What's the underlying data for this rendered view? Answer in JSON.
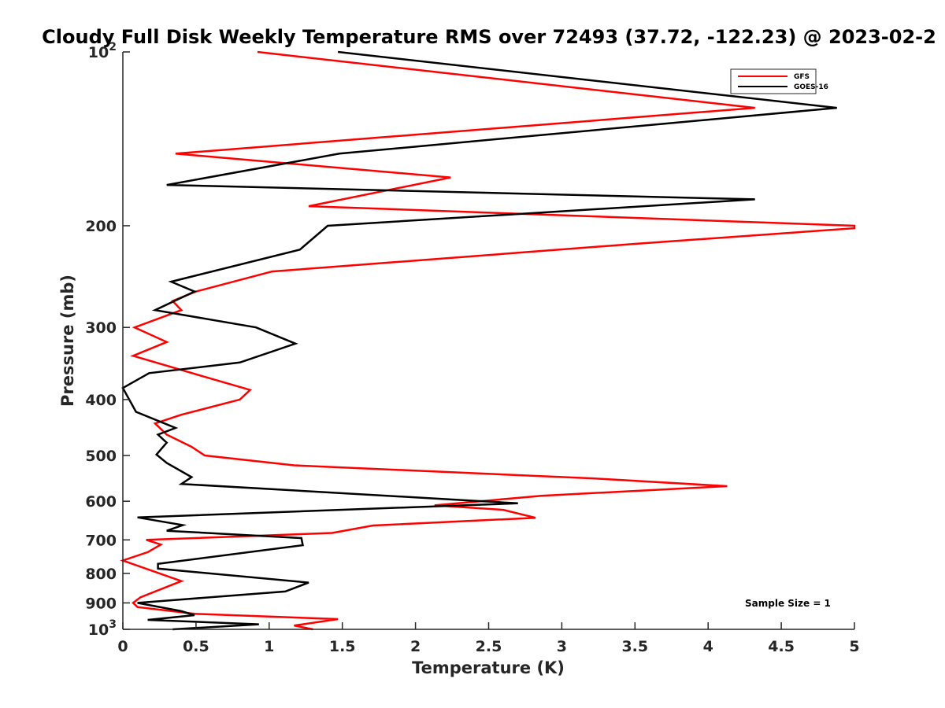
{
  "chart_data": {
    "type": "line",
    "title": "Cloudy Full Disk Weekly Temperature RMS over 72493 (37.72, -122.23) @ 2023-02-2",
    "xlabel": "Temperature (K)",
    "ylabel": "Pressure (mb)",
    "xlim": [
      0,
      5
    ],
    "ylim": [
      100,
      1000
    ],
    "y_scale": "log",
    "y_reversed": true,
    "grid": false,
    "legend_position": "top-right",
    "x_ticks": [
      "0",
      "0.5",
      "1",
      "1.5",
      "2",
      "2.5",
      "3",
      "3.5",
      "4",
      "4.5",
      "5"
    ],
    "y_ticks": [
      {
        "value": 100,
        "base": "10",
        "exp": "2"
      },
      {
        "value": 200,
        "label": "200"
      },
      {
        "value": 300,
        "label": "300"
      },
      {
        "value": 400,
        "label": "400"
      },
      {
        "value": 500,
        "label": "500"
      },
      {
        "value": 600,
        "label": "600"
      },
      {
        "value": 700,
        "label": "700"
      },
      {
        "value": 800,
        "label": "800"
      },
      {
        "value": 900,
        "label": "900"
      },
      {
        "value": 1000,
        "base": "10",
        "exp": "3"
      }
    ],
    "annotation": "Sample Size = 1",
    "series": [
      {
        "name": "GFS",
        "color": "#ff0000",
        "points": [
          [
            0.92,
            100
          ],
          [
            4.32,
            125
          ],
          [
            0.36,
            150
          ],
          [
            2.24,
            165
          ],
          [
            1.27,
            185
          ],
          [
            5.0,
            200
          ],
          [
            5.0,
            202
          ],
          [
            3.5,
            215
          ],
          [
            1.02,
            240
          ],
          [
            0.5,
            260
          ],
          [
            0.34,
            270
          ],
          [
            0.4,
            280
          ],
          [
            0.08,
            300
          ],
          [
            0.3,
            318
          ],
          [
            0.07,
            336
          ],
          [
            0.57,
            366
          ],
          [
            0.87,
            385
          ],
          [
            0.8,
            400
          ],
          [
            0.4,
            425
          ],
          [
            0.22,
            440
          ],
          [
            0.3,
            460
          ],
          [
            0.47,
            483
          ],
          [
            0.56,
            500
          ],
          [
            1.17,
            520
          ],
          [
            3.23,
            548
          ],
          [
            4.13,
            565
          ],
          [
            2.86,
            587
          ],
          [
            2.13,
            610
          ],
          [
            2.6,
            621
          ],
          [
            2.82,
            641
          ],
          [
            1.71,
            661
          ],
          [
            1.43,
            681
          ],
          [
            0.16,
            700
          ],
          [
            0.26,
            713
          ],
          [
            0.17,
            735
          ],
          [
            0.0,
            760
          ],
          [
            0.4,
            825
          ],
          [
            0.12,
            880
          ],
          [
            0.07,
            900
          ],
          [
            0.1,
            915
          ],
          [
            0.49,
            940
          ],
          [
            1.47,
            960
          ],
          [
            1.17,
            985
          ],
          [
            1.3,
            1000
          ]
        ]
      },
      {
        "name": "GOES-16",
        "color": "#000000",
        "points": [
          [
            1.47,
            100
          ],
          [
            4.88,
            125
          ],
          [
            1.48,
            150
          ],
          [
            0.3,
            170
          ],
          [
            4.32,
            180
          ],
          [
            1.4,
            200
          ],
          [
            1.21,
            220
          ],
          [
            0.33,
            250
          ],
          [
            0.49,
            260
          ],
          [
            0.22,
            280
          ],
          [
            0.91,
            300
          ],
          [
            1.18,
            320
          ],
          [
            0.8,
            345
          ],
          [
            0.18,
            360
          ],
          [
            0.0,
            382
          ],
          [
            0.09,
            420
          ],
          [
            0.36,
            448
          ],
          [
            0.24,
            460
          ],
          [
            0.3,
            475
          ],
          [
            0.23,
            498
          ],
          [
            0.3,
            515
          ],
          [
            0.47,
            545
          ],
          [
            0.4,
            560
          ],
          [
            2.7,
            605
          ],
          [
            0.1,
            640
          ],
          [
            0.41,
            660
          ],
          [
            0.3,
            675
          ],
          [
            1.22,
            695
          ],
          [
            1.23,
            715
          ],
          [
            0.24,
            770
          ],
          [
            0.24,
            785
          ],
          [
            1.27,
            830
          ],
          [
            1.11,
            860
          ],
          [
            0.1,
            900
          ],
          [
            0.4,
            930
          ],
          [
            0.49,
            945
          ],
          [
            0.17,
            963
          ],
          [
            0.93,
            980
          ],
          [
            0.34,
            1000
          ]
        ]
      }
    ]
  }
}
